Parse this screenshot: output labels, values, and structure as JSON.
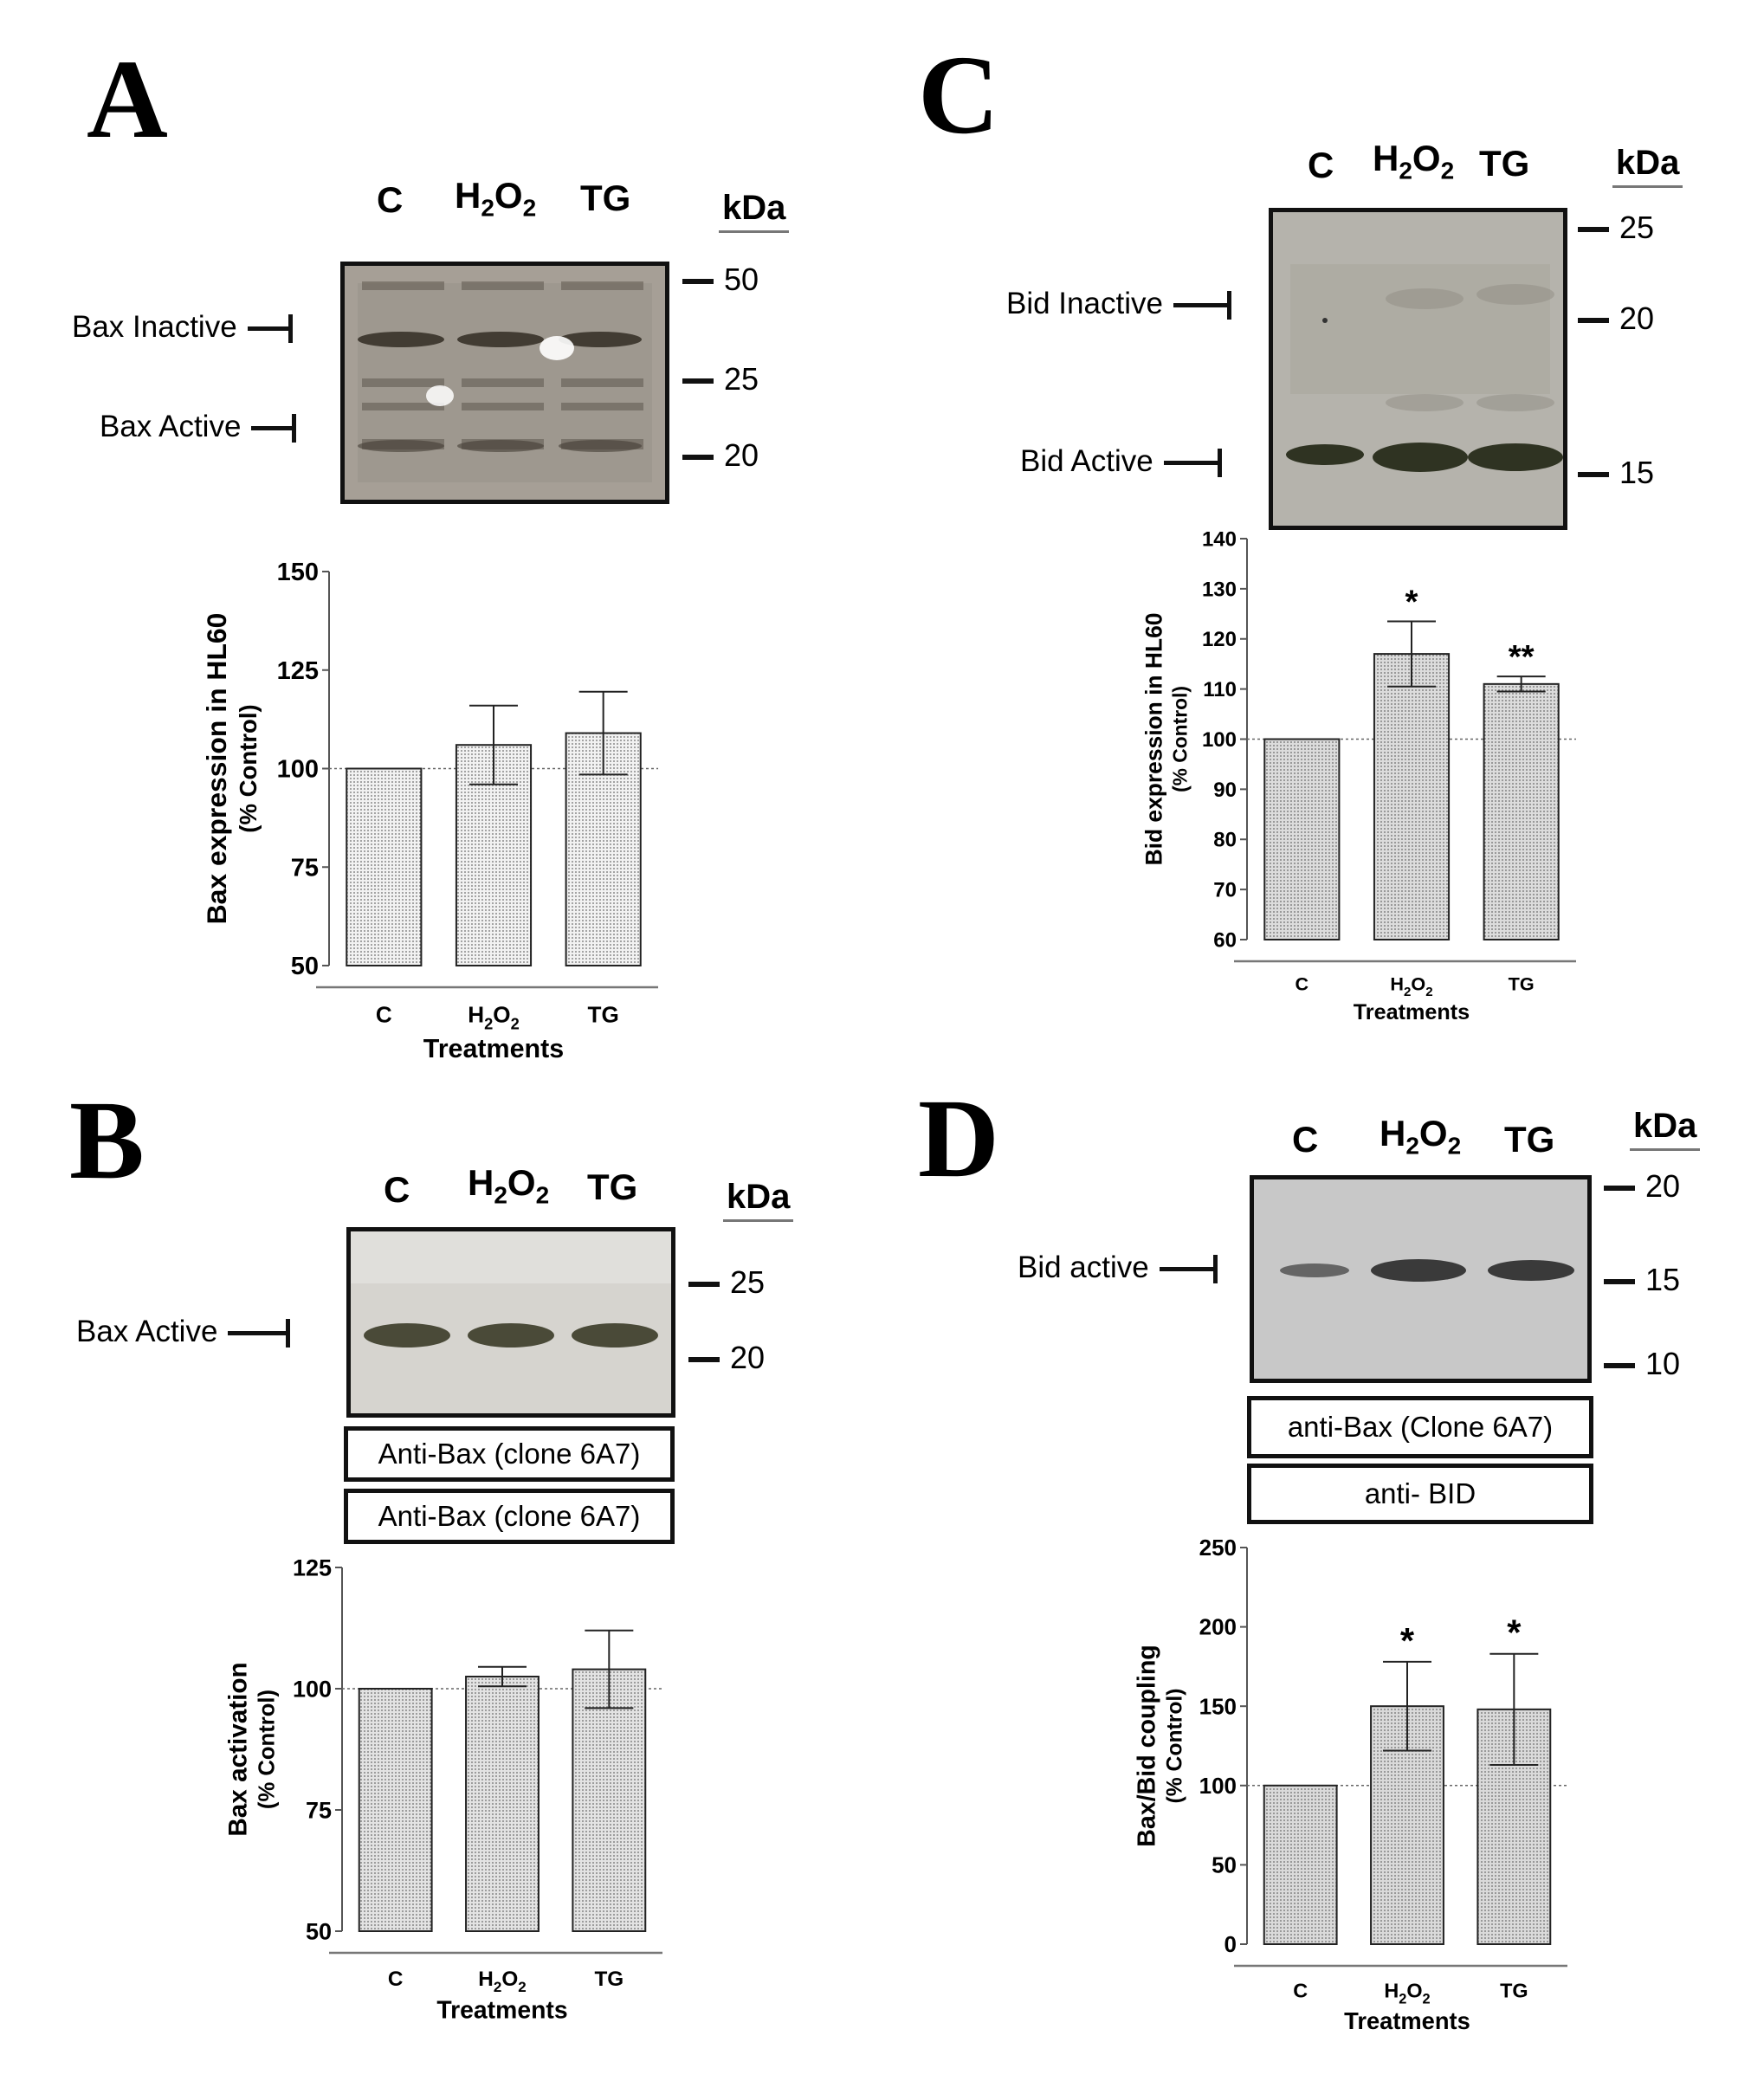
{
  "panels": {
    "A": {
      "letter": "A",
      "lanes": [
        "C",
        "H2O2",
        "TG"
      ],
      "kda": "kDa",
      "markers": [
        "50",
        "25",
        "20"
      ],
      "bands": [
        "Bax  Inactive",
        "Bax  Active"
      ]
    },
    "B": {
      "letter": "B",
      "lanes": [
        "C",
        "H2O2",
        "TG"
      ],
      "kda": "kDa",
      "markers": [
        "25",
        "20"
      ],
      "bands": [
        "Bax  Active"
      ],
      "antibodies": [
        "Anti-Bax (clone 6A7)",
        "Anti-Bax (clone 6A7)"
      ]
    },
    "C": {
      "letter": "C",
      "lanes": [
        "C",
        "H2O2",
        "TG"
      ],
      "kda": "kDa",
      "markers": [
        "25",
        "20",
        "15"
      ],
      "bands": [
        "Bid  Inactive",
        "Bid  Active"
      ]
    },
    "D": {
      "letter": "D",
      "lanes": [
        "C",
        "H2O2",
        "TG"
      ],
      "kda": "kDa",
      "markers": [
        "20",
        "15",
        "10"
      ],
      "bands": [
        "Bid active"
      ],
      "antibodies": [
        "anti-Bax (Clone 6A7)",
        "anti- BID"
      ]
    }
  },
  "chart_data": [
    {
      "panel": "A",
      "type": "bar",
      "categories": [
        "C",
        "H2O2",
        "TG"
      ],
      "values": [
        100,
        106,
        109
      ],
      "errors": [
        0,
        10,
        10.5
      ],
      "significance": [
        "",
        "",
        ""
      ],
      "ylim": [
        50,
        150
      ],
      "yticks": [
        50,
        75,
        100,
        125,
        150
      ],
      "reference_line": 100,
      "ylabel": "Bax expression in HL60",
      "ylabel2": "(% Control)",
      "xlabel": "Treatments",
      "bar_color": "#f2f2f2"
    },
    {
      "panel": "B",
      "type": "bar",
      "categories": [
        "C",
        "H2O2",
        "TG"
      ],
      "values": [
        100,
        102.5,
        104
      ],
      "errors": [
        0,
        2,
        8
      ],
      "significance": [
        "",
        "",
        ""
      ],
      "ylim": [
        50,
        125
      ],
      "yticks": [
        50,
        75,
        100,
        125
      ],
      "reference_line": 100,
      "ylabel": "Bax activation",
      "ylabel2": "(% Control)",
      "xlabel": "Treatments",
      "bar_color": "#e3e3e3"
    },
    {
      "panel": "C",
      "type": "bar",
      "categories": [
        "C",
        "H2O2",
        "TG"
      ],
      "values": [
        100,
        117,
        111
      ],
      "errors": [
        0,
        6.5,
        1.5
      ],
      "significance": [
        "",
        "*",
        "**"
      ],
      "ylim": [
        60,
        140
      ],
      "yticks": [
        60,
        70,
        80,
        90,
        100,
        110,
        120,
        130,
        140
      ],
      "reference_line": 100,
      "ylabel": "Bid expression in HL60",
      "ylabel2": "(% Control)",
      "xlabel": "Treatments",
      "bar_color": "#dcdcdc"
    },
    {
      "panel": "D",
      "type": "bar",
      "categories": [
        "C",
        "H2O2",
        "TG"
      ],
      "values": [
        100,
        150,
        148
      ],
      "errors": [
        0,
        28,
        35
      ],
      "significance": [
        "",
        "*",
        "*"
      ],
      "ylim": [
        0,
        250
      ],
      "yticks": [
        0,
        50,
        100,
        150,
        200,
        250
      ],
      "reference_line": 100,
      "ylabel": "Bax/Bid coupling",
      "ylabel2": "(% Control)",
      "xlabel": "Treatments",
      "bar_color": "#dadada"
    }
  ]
}
